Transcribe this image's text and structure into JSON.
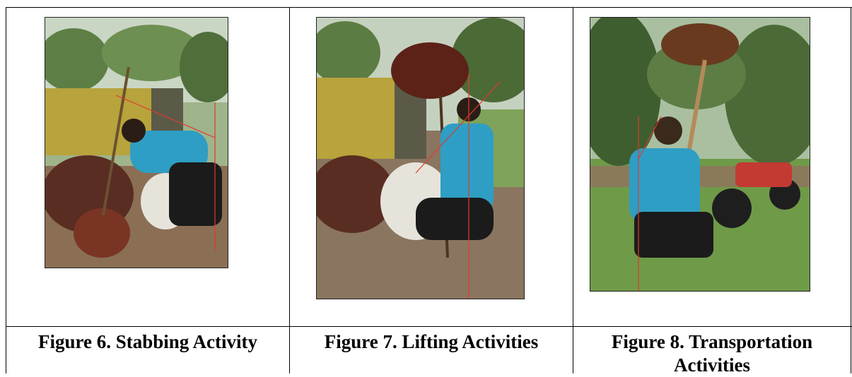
{
  "figures": [
    {
      "caption": "Figure 6. Stabbing Activity"
    },
    {
      "caption": "Figure 7. Lifting Activities"
    },
    {
      "caption": "Figure 8. Transportation Activities"
    }
  ]
}
